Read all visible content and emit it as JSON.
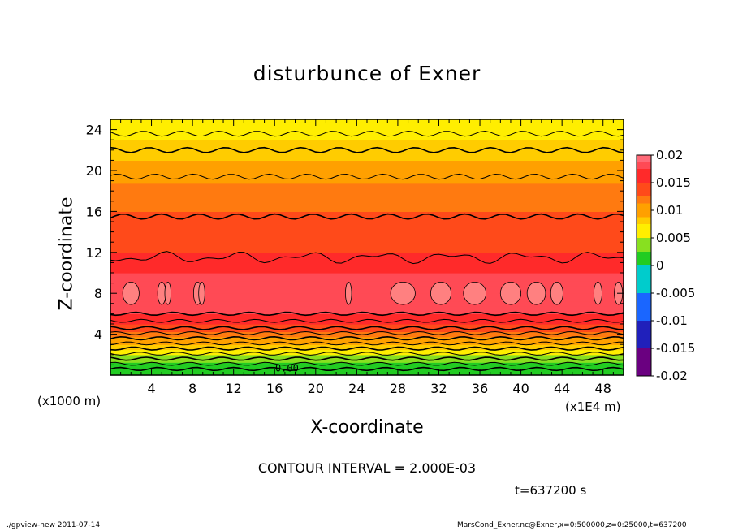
{
  "chart_data": {
    "type": "heatmap",
    "title": "disturbunce of Exner",
    "xlabel": "X-coordinate",
    "ylabel": "Z-coordinate",
    "x_unit_left": "(x1000 m)",
    "x_unit_right": "(x1E4 m)",
    "xlim": [
      0,
      50
    ],
    "ylim": [
      0,
      25
    ],
    "x_ticks": [
      4,
      8,
      12,
      16,
      20,
      24,
      28,
      32,
      36,
      40,
      44,
      48
    ],
    "y_ticks": [
      4,
      8,
      12,
      16,
      20,
      24
    ],
    "colorbar": {
      "levels": [
        0.02,
        0.015,
        0.01,
        0.005,
        0,
        -0.005,
        -0.01,
        -0.015,
        -0.02
      ],
      "labels": [
        "0.02",
        "0.015",
        "0.01",
        "0.005",
        "0",
        "-0.005",
        "-0.01",
        "-0.015",
        "-0.02"
      ],
      "colors": [
        "#ff6070",
        "#ff2a2a",
        "#ff8a00",
        "#ffee00",
        "#22cc22",
        "#00cccc",
        "#1a66ff",
        "#2020bb",
        "#6a0080"
      ]
    },
    "field_profile": [
      {
        "z": 0.3,
        "value": 0.0
      },
      {
        "z": 1.0,
        "value": 0.002
      },
      {
        "z": 2.0,
        "value": 0.005
      },
      {
        "z": 3.0,
        "value": 0.009
      },
      {
        "z": 4.0,
        "value": 0.012
      },
      {
        "z": 5.0,
        "value": 0.015
      },
      {
        "z": 6.0,
        "value": 0.017
      },
      {
        "z": 8.0,
        "value": 0.019
      },
      {
        "z": 10.0,
        "value": 0.017
      },
      {
        "z": 12.0,
        "value": 0.015
      },
      {
        "z": 16.0,
        "value": 0.013
      },
      {
        "z": 20.0,
        "value": 0.01
      },
      {
        "z": 22.0,
        "value": 0.008
      },
      {
        "z": 24.0,
        "value": 0.006
      },
      {
        "z": 25.0,
        "value": 0.005
      }
    ],
    "contour_label": "0.00",
    "contour_interval": "CONTOUR INTERVAL = 2.000E-03",
    "time": "t=637200 s"
  },
  "footer": {
    "left": "./gpview-new   2011-07-14",
    "right": "MarsCond_Exner.nc@Exner,x=0:500000,z=0:25000,t=637200"
  },
  "colors": {
    "background": "#ffffff",
    "frame": "#000000"
  }
}
